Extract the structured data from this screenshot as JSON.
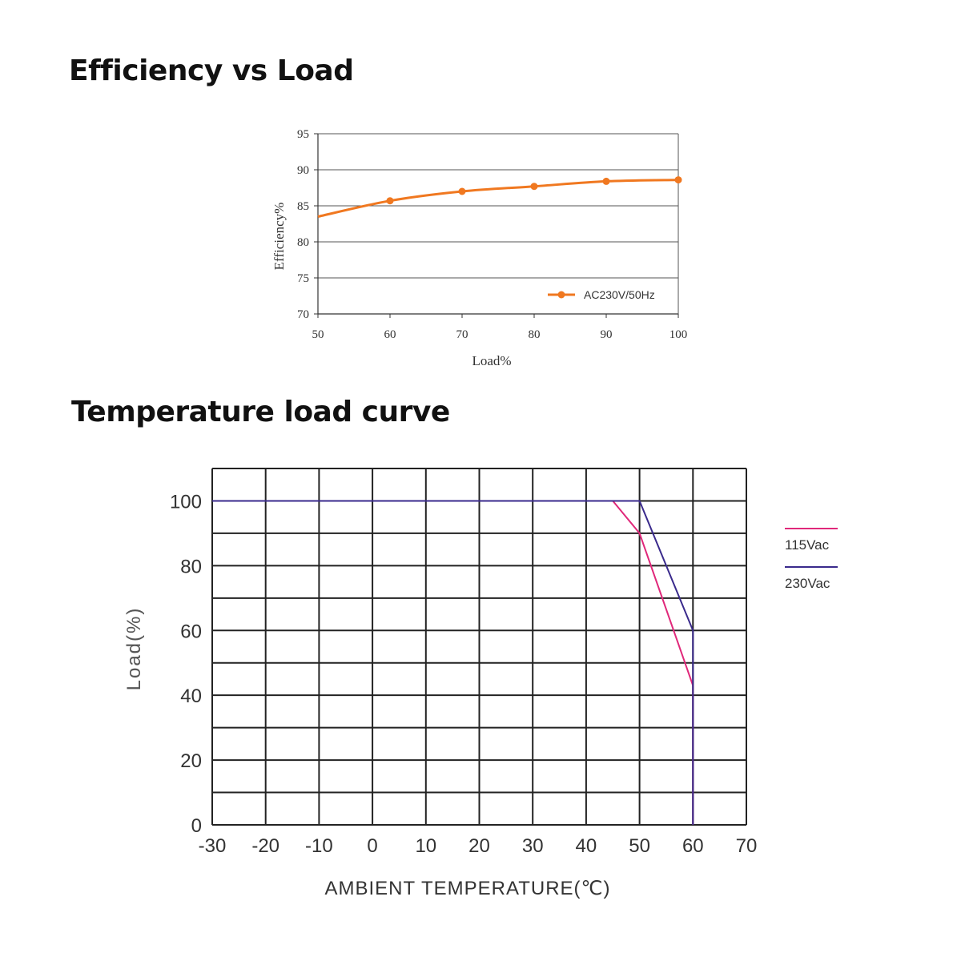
{
  "sections": {
    "efficiency_title": "Efficiency vs Load",
    "temperature_title": "Temperature load curve"
  },
  "colors": {
    "efficiency_series": "#f07820",
    "vac115": "#e0287a",
    "vac230": "#3a2a8c",
    "grid": "#222222"
  },
  "chart_data": [
    {
      "type": "line",
      "title": "Efficiency vs Load",
      "xlabel": "Load%",
      "ylabel": "Efficiency%",
      "xlim": [
        50,
        100
      ],
      "ylim": [
        70,
        95
      ],
      "x_ticks": [
        50,
        60,
        70,
        80,
        90,
        100
      ],
      "y_ticks": [
        70,
        75,
        80,
        85,
        90,
        95
      ],
      "grid": "horizontal",
      "legend_position": "bottom-right",
      "series": [
        {
          "name": "AC230V/50Hz",
          "color": "#f07820",
          "x": [
            50,
            60,
            70,
            80,
            90,
            100
          ],
          "y": [
            83.5,
            85.7,
            87.0,
            87.7,
            88.4,
            88.6
          ],
          "markers": [
            false,
            true,
            true,
            true,
            true,
            true
          ]
        }
      ]
    },
    {
      "type": "line",
      "title": "Temperature load curve",
      "xlabel": "AMBIENT TEMPERATURE(℃)",
      "ylabel": "Load(%)",
      "xlim": [
        -30,
        70
      ],
      "ylim": [
        0,
        110
      ],
      "x_ticks": [
        -30,
        -20,
        -10,
        0,
        10,
        20,
        30,
        40,
        50,
        60,
        70
      ],
      "y_ticks": [
        0,
        20,
        40,
        60,
        80,
        100
      ],
      "grid": "full",
      "legend_position": "right",
      "series": [
        {
          "name": "115Vac",
          "color": "#e0287a",
          "x": [
            -30,
            45,
            50,
            60,
            60
          ],
          "y": [
            100,
            100,
            90,
            43,
            0
          ]
        },
        {
          "name": "230Vac",
          "color": "#3a2a8c",
          "x": [
            -30,
            50,
            60,
            60
          ],
          "y": [
            100,
            100,
            60,
            0
          ]
        }
      ]
    }
  ]
}
